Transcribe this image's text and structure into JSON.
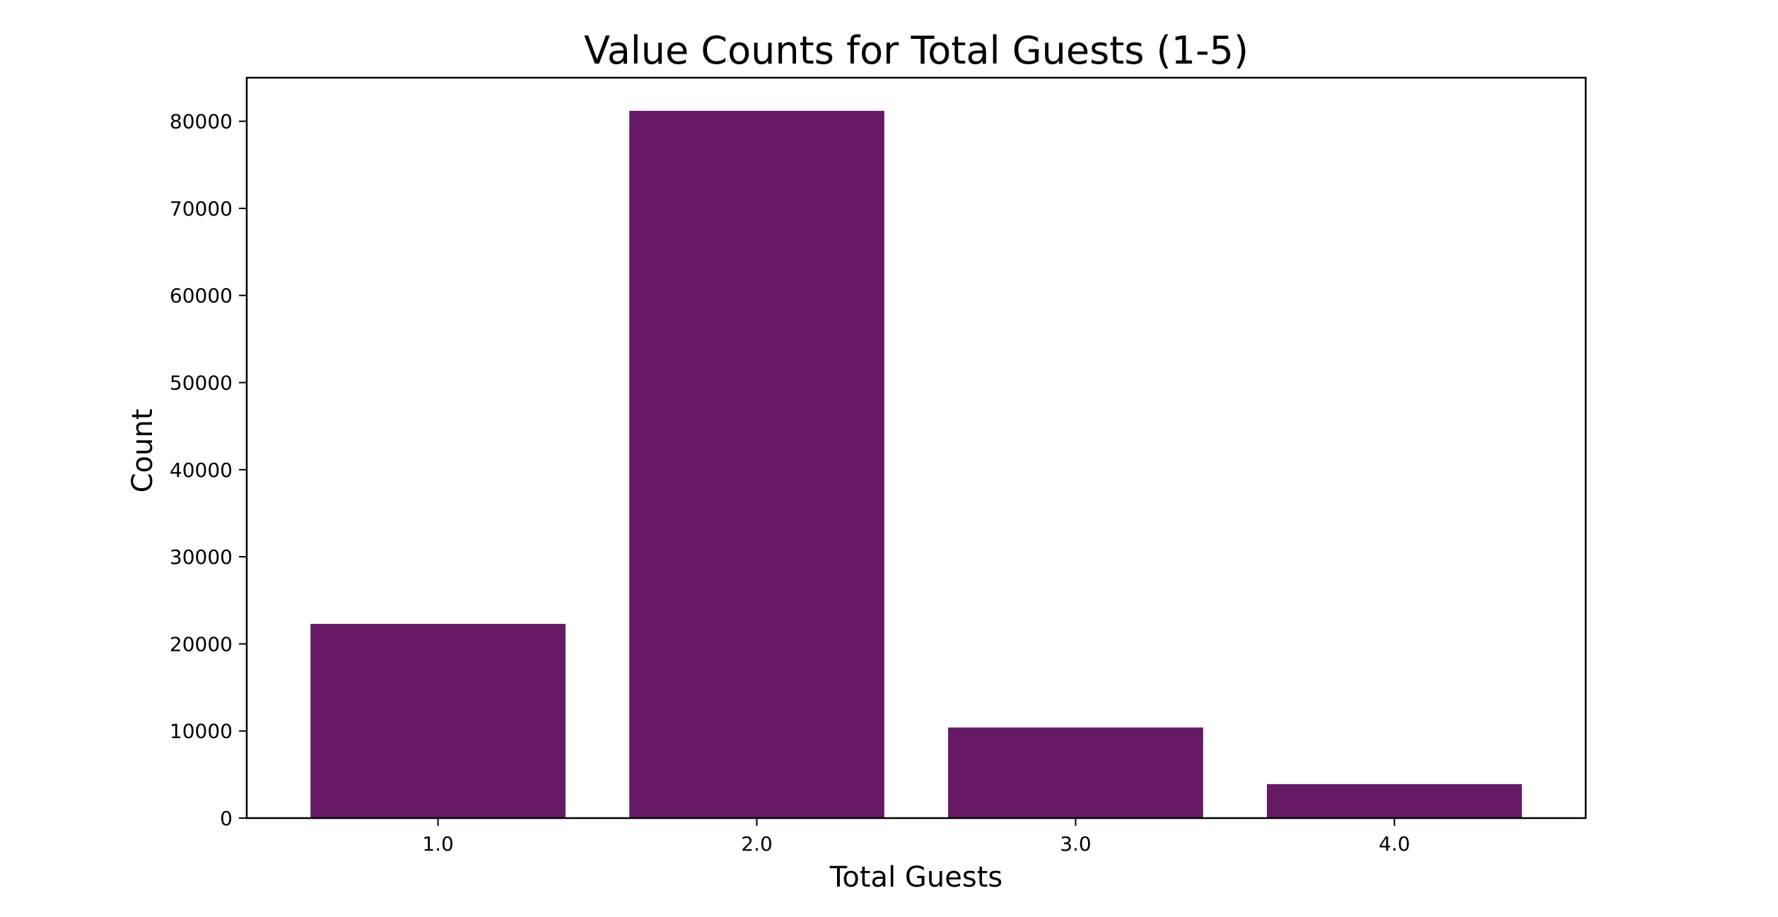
{
  "chart_data": {
    "type": "bar",
    "title": "Value Counts for Total Guests (1-5)",
    "xlabel": "Total Guests",
    "ylabel": "Count",
    "categories": [
      "1.0",
      "2.0",
      "3.0",
      "4.0"
    ],
    "values": [
      22300,
      81200,
      10400,
      3900
    ],
    "ylim": [
      0,
      85000
    ],
    "yticks": [
      0,
      10000,
      20000,
      30000,
      40000,
      50000,
      60000,
      70000,
      80000
    ],
    "ytick_labels": [
      "0",
      "10000",
      "20000",
      "30000",
      "40000",
      "50000",
      "60000",
      "70000",
      "80000"
    ],
    "bar_color": "#661a66",
    "grid": false,
    "legend": "none"
  }
}
